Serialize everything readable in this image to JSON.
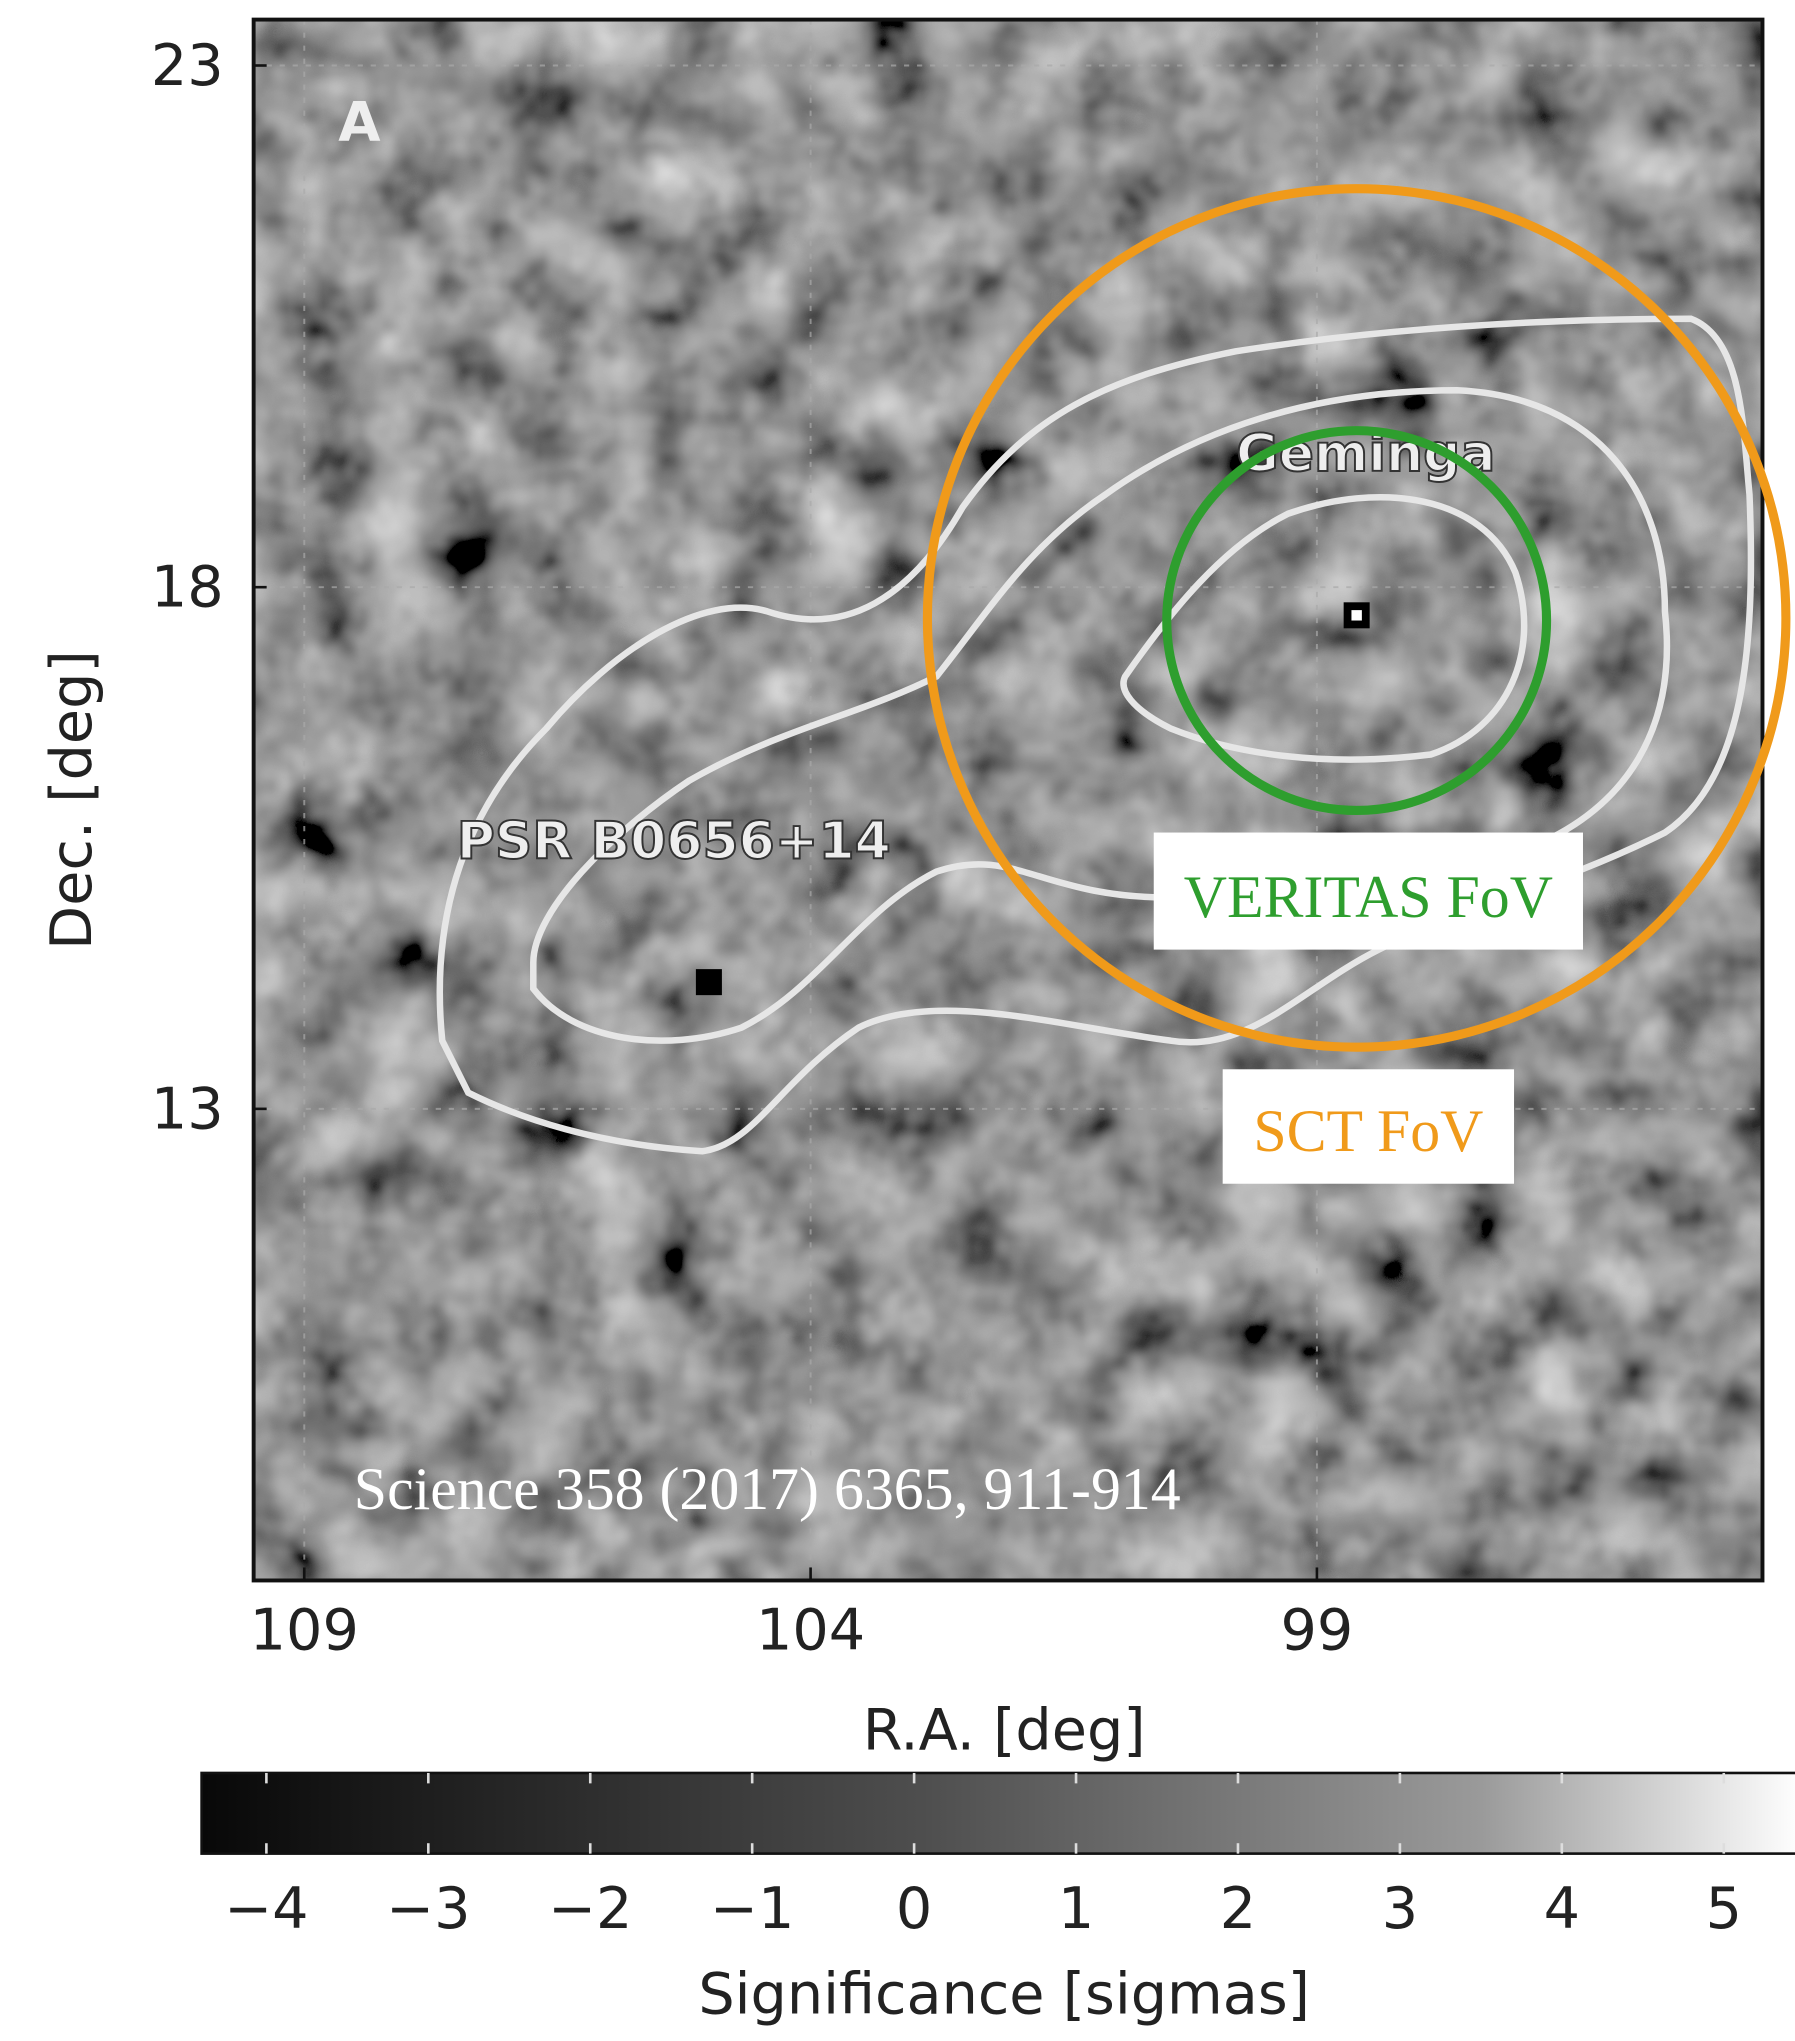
{
  "chart_data": {
    "type": "skymap",
    "panel_label": "A",
    "xlabel": "R.A. [deg]",
    "ylabel": "Dec. [deg]",
    "xlim": [
      109.5,
      94.6
    ],
    "xticks": [
      109,
      104,
      99
    ],
    "ylim": [
      8.48,
      23.44
    ],
    "yticks": [
      23,
      18,
      13
    ],
    "grid": true,
    "sources": [
      "Geminga",
      "PSR B0656+14"
    ],
    "fov_labels": [
      "VERITAS FoV",
      "SCT FoV"
    ],
    "fov_colors": [
      "#2e9e2e",
      "#f09a1a"
    ],
    "citation": "Science 358 (2017) 6365, 911-914",
    "colorbar": {
      "label": "Significance [sigmas]",
      "clim": [
        -4.4,
        5.48
      ],
      "ticks": [
        {
          "value": -4,
          "label": "−4"
        },
        {
          "value": -3,
          "label": "−3"
        },
        {
          "value": -2,
          "label": "−2"
        },
        {
          "value": -1,
          "label": "−1"
        },
        0,
        1,
        2,
        3,
        4,
        5
      ]
    }
  }
}
